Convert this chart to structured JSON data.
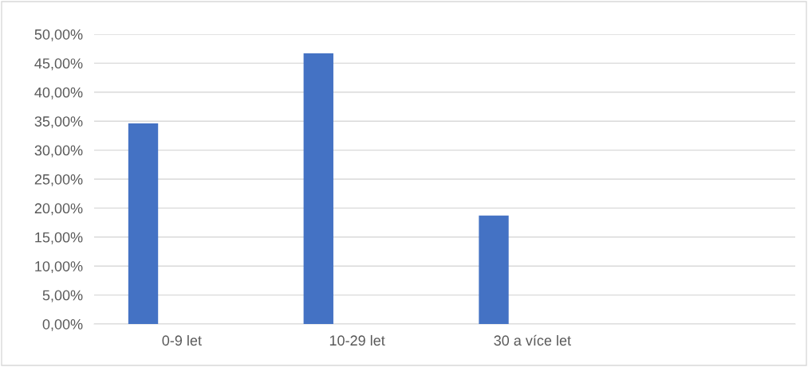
{
  "chart_data": {
    "type": "bar",
    "categories": [
      "0-9 let",
      "10-29 let",
      "30 a více let",
      null
    ],
    "values": [
      34.6,
      46.7,
      18.7,
      null
    ],
    "color": "#4472c4",
    "ylim": [
      0,
      50
    ],
    "yticks": [
      {
        "value": 0,
        "label": "0,00%"
      },
      {
        "value": 5,
        "label": "5,00%"
      },
      {
        "value": 10,
        "label": "10,00%"
      },
      {
        "value": 15,
        "label": "15,00%"
      },
      {
        "value": 20,
        "label": "20,00%"
      },
      {
        "value": 25,
        "label": "25,00%"
      },
      {
        "value": 30,
        "label": "30,00%"
      },
      {
        "value": 35,
        "label": "35,00%"
      },
      {
        "value": 40,
        "label": "40,00%"
      },
      {
        "value": 45,
        "label": "45,00%"
      },
      {
        "value": 50,
        "label": "50,00%"
      }
    ],
    "grid": "y"
  }
}
